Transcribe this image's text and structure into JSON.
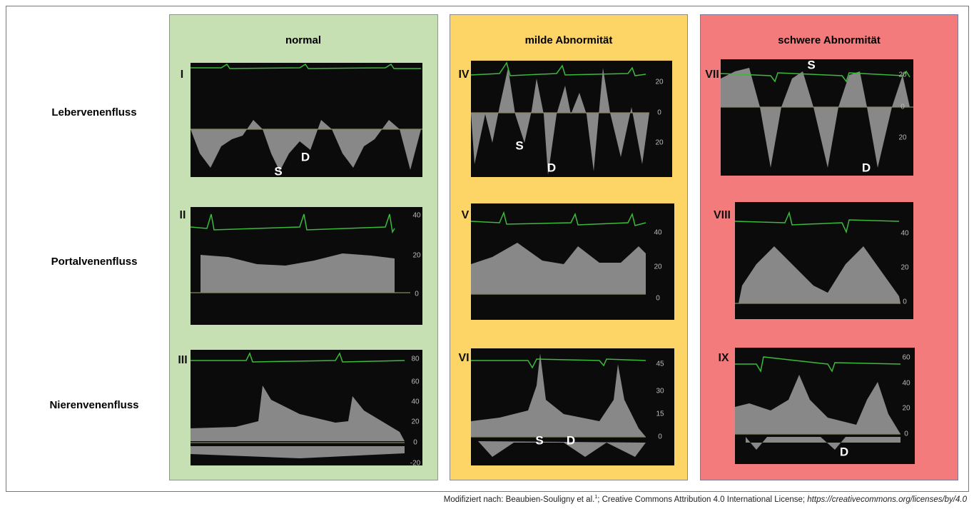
{
  "rows": [
    "Lebervenenfluss",
    "Portalvenenfluss",
    "Nierenvenenfluss"
  ],
  "columns": [
    {
      "title": "normal",
      "panels": [
        {
          "label": "I",
          "annotations": [
            "S",
            "D"
          ],
          "scale": []
        },
        {
          "label": "II",
          "annotations": [],
          "scale": [
            "40",
            "20",
            "0"
          ]
        },
        {
          "label": "III",
          "annotations": [],
          "scale": [
            "80",
            "60",
            "40",
            "20",
            "0",
            "-20"
          ]
        }
      ]
    },
    {
      "title": "milde Abnormität",
      "panels": [
        {
          "label": "IV",
          "annotations": [
            "S",
            "D"
          ],
          "scale": [
            "20",
            "0",
            "20"
          ]
        },
        {
          "label": "V",
          "annotations": [],
          "scale": [
            "40",
            "20",
            "0"
          ]
        },
        {
          "label": "VI",
          "annotations": [
            "S",
            "D"
          ],
          "scale": [
            "45",
            "30",
            "15",
            "0"
          ]
        }
      ]
    },
    {
      "title": "schwere Abnormität",
      "panels": [
        {
          "label": "VII",
          "annotations": [
            "S",
            "D"
          ],
          "scale": [
            "20",
            "0",
            "20"
          ]
        },
        {
          "label": "VIII",
          "annotations": [],
          "scale": [
            "40",
            "20",
            "0"
          ]
        },
        {
          "label": "IX",
          "annotations": [
            "D"
          ],
          "scale": [
            "60",
            "40",
            "20",
            "0"
          ]
        }
      ]
    }
  ],
  "footer": {
    "text": "Modifiziert nach: Beaubien-Souligny et al.",
    "superscript": "1",
    "text2": "; Creative Commons Attribution 4.0 International License; ",
    "url": "https://creativecommons.org/licenses/by/4.0"
  }
}
